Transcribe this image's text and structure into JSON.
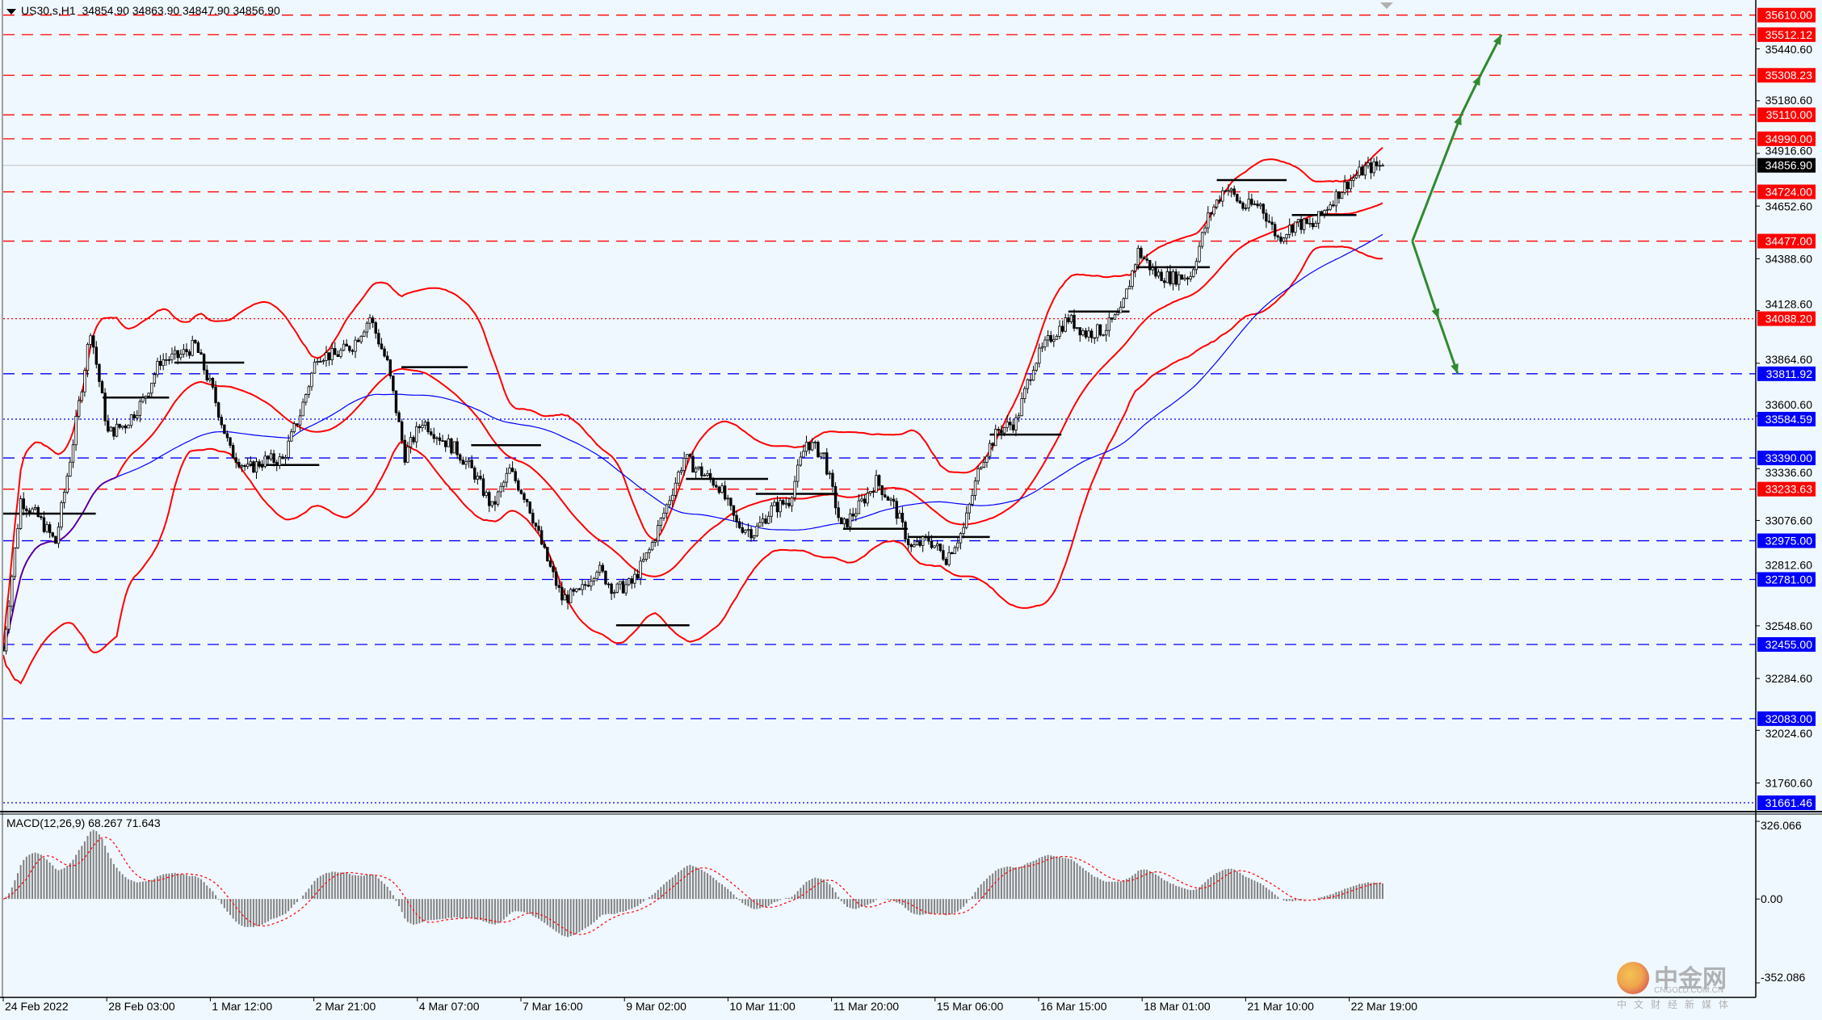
{
  "header": {
    "symbol": "US30.s,H1",
    "ohlc": "34854.90 34863.90 34847.90 34856.90"
  },
  "watermark": {
    "name": "中金网",
    "domain": "CNGOLD.COM.CN",
    "slogan": "中文财经新媒体"
  },
  "chart_data": [
    {
      "type": "candlestick",
      "title": "US30.s,H1",
      "x_tick_labels": [
        "24 Feb 2022",
        "28 Feb 03:00",
        "1 Mar 12:00",
        "2 Mar 21:00",
        "4 Mar 07:00",
        "7 Mar 16:00",
        "9 Mar 02:00",
        "10 Mar 11:00",
        "11 Mar 20:00",
        "15 Mar 06:00",
        "16 Mar 15:00",
        "18 Mar 01:00",
        "21 Mar 10:00",
        "22 Mar 19:00"
      ],
      "y_tick_labels": [
        "35440.60",
        "35180.60",
        "34916.60",
        "34652.60",
        "34388.60",
        "34128.60",
        "33864.60",
        "33600.60",
        "33336.60",
        "33076.60",
        "32812.60",
        "32548.60",
        "32284.60",
        "32024.60",
        "31760.60"
      ],
      "ylim": [
        31661.46,
        35610.0
      ],
      "grid": false,
      "close_path_approx": [
        32423,
        33181,
        33093,
        32965,
        33472,
        34037,
        33513,
        33559,
        33676,
        33880,
        33897,
        33955,
        33722,
        33425,
        33332,
        33379,
        33379,
        33612,
        33909,
        33903,
        33955,
        34095,
        33862,
        33402,
        33577,
        33495,
        33425,
        33309,
        33140,
        33326,
        33181,
        32913,
        32685,
        32709,
        32843,
        32726,
        32761,
        32924,
        33151,
        33390,
        33315,
        33250,
        33058,
        33017,
        33134,
        33175,
        33472,
        33402,
        33035,
        33146,
        33274,
        33151,
        32936,
        32982,
        32889,
        33035,
        33373,
        33530,
        33571,
        33862,
        33996,
        34089,
        34014,
        34031,
        34113,
        34427,
        34311,
        34293,
        34305,
        34596,
        34754,
        34649,
        34660,
        34491,
        34567,
        34550,
        34672,
        34771,
        34841,
        34857
      ],
      "current_price": {
        "label": "34856.90",
        "color": "#000000"
      },
      "levels": [
        {
          "label": "35610.00",
          "color": "#ff0000",
          "style": "dash"
        },
        {
          "label": "35512.12",
          "color": "#ff0000",
          "style": "dash"
        },
        {
          "label": "35308.23",
          "color": "#ff0000",
          "style": "dash"
        },
        {
          "label": "35110.00",
          "color": "#ff0000",
          "style": "dash"
        },
        {
          "label": "34990.00",
          "color": "#ff0000",
          "style": "dash"
        },
        {
          "label": "34724.00",
          "color": "#ff0000",
          "style": "dash"
        },
        {
          "label": "34477.00",
          "color": "#ff0000",
          "style": "dash"
        },
        {
          "label": "34088.20",
          "color": "#ff0000",
          "style": "dot"
        },
        {
          "label": "33811.92",
          "color": "#0000ff",
          "style": "dash"
        },
        {
          "label": "33584.59",
          "color": "#0000ff",
          "style": "dot"
        },
        {
          "label": "33390.00",
          "color": "#0000ff",
          "style": "dash"
        },
        {
          "label": "33233.63",
          "color": "#ff0000",
          "style": "dash"
        },
        {
          "label": "32975.00",
          "color": "#0000ff",
          "style": "dash"
        },
        {
          "label": "32781.00",
          "color": "#0000ff",
          "style": "dash"
        },
        {
          "label": "32455.00",
          "color": "#0000ff",
          "style": "dash"
        },
        {
          "label": "32083.00",
          "color": "#0000ff",
          "style": "dash"
        },
        {
          "label": "31661.46",
          "color": "#0000ff",
          "style": "dot"
        }
      ],
      "drawn_segments": [
        {
          "price": 33111,
          "from": 0,
          "to": 5.3
        },
        {
          "price": 33693,
          "from": 5.7,
          "to": 9.5
        },
        {
          "price": 33868,
          "from": 9.8,
          "to": 13.8
        },
        {
          "price": 33355,
          "from": 14.1,
          "to": 18.1
        },
        {
          "price": 33845,
          "from": 22.8,
          "to": 26.6
        },
        {
          "price": 33454,
          "from": 26.8,
          "to": 30.8
        },
        {
          "price": 32551,
          "from": 35.1,
          "to": 39.3
        },
        {
          "price": 33285,
          "from": 39.1,
          "to": 43.8
        },
        {
          "price": 33210,
          "from": 43.1,
          "to": 47.8
        },
        {
          "price": 33035,
          "from": 48.1,
          "to": 51.8
        },
        {
          "price": 32994,
          "from": 51.8,
          "to": 56.5
        },
        {
          "price": 33507,
          "from": 56.5,
          "to": 60.6
        },
        {
          "price": 34124,
          "from": 61,
          "to": 64.5
        },
        {
          "price": 34346,
          "from": 64.8,
          "to": 69.1
        },
        {
          "price": 34783,
          "from": 69.5,
          "to": 73.5
        },
        {
          "price": 34608,
          "from": 73.8,
          "to": 77.5
        }
      ],
      "arrows": [
        {
          "name": "bullish-scenario",
          "color": "#2f8a2f",
          "points": [
            [
              80.7,
              34477
            ],
            [
              83.5,
              35110
            ],
            [
              84.6,
              35308
            ],
            [
              85.8,
              35512
            ]
          ]
        },
        {
          "name": "bearish-scenario",
          "color": "#2f8a2f",
          "points": [
            [
              80.7,
              34477
            ],
            [
              82.2,
              34088
            ],
            [
              83.3,
              33812
            ]
          ]
        }
      ],
      "indicators": {
        "bollinger_color": "#ff0000",
        "moving_average_color": "#0000ff"
      }
    },
    {
      "type": "bar",
      "title": "MACD(12,26,9) 68.267 71.643",
      "y_tick_labels": [
        "326.066",
        "0.00",
        "-352.086"
      ],
      "ylim": [
        -352.086,
        326.066
      ],
      "histogram_color": "#808080",
      "signal_color": "#ff0000"
    }
  ]
}
